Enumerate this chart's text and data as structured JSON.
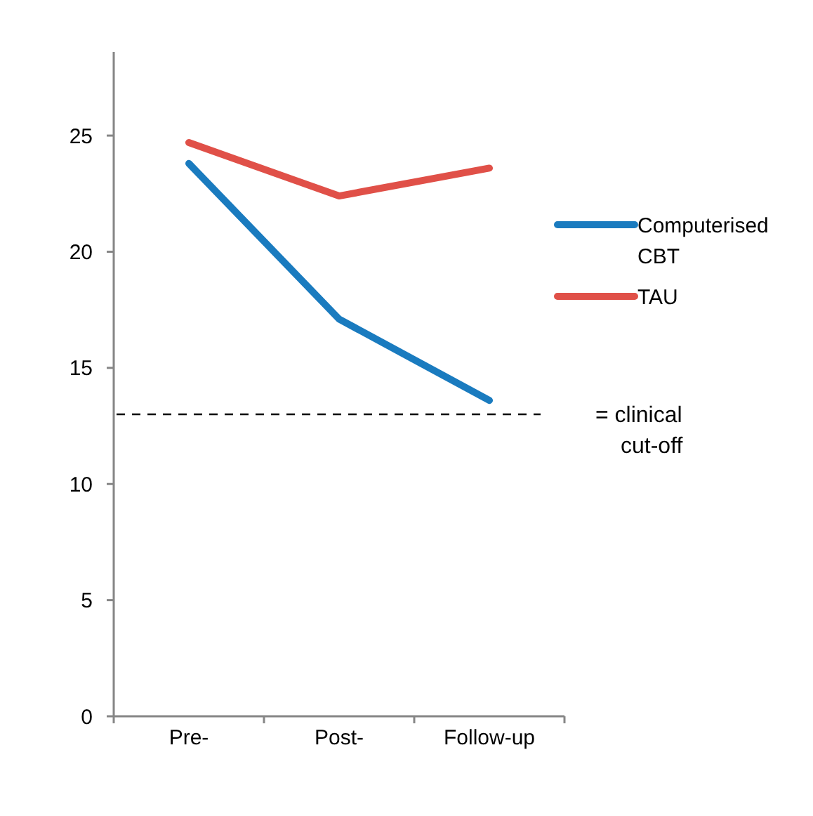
{
  "chart_data": {
    "type": "line",
    "categories": [
      "Pre-",
      "Post-",
      "Follow-up"
    ],
    "series": [
      {
        "name": "Computerised CBT",
        "color": "#1a7bbf",
        "values": [
          23.8,
          17.1,
          13.6
        ]
      },
      {
        "name": "TAU",
        "color": "#e05048",
        "values": [
          24.7,
          22.4,
          23.6
        ]
      }
    ],
    "ylim": [
      0,
      28.6
    ],
    "yticks": [
      0,
      5,
      10,
      15,
      20,
      25
    ],
    "grid": false,
    "legend": "right",
    "marker": "none",
    "line_style": "solid",
    "ref_lines": [
      {
        "axis": "y",
        "value": 13,
        "label": "= clinical cut-off",
        "color": "#000000",
        "line_style": "dashed"
      }
    ]
  }
}
